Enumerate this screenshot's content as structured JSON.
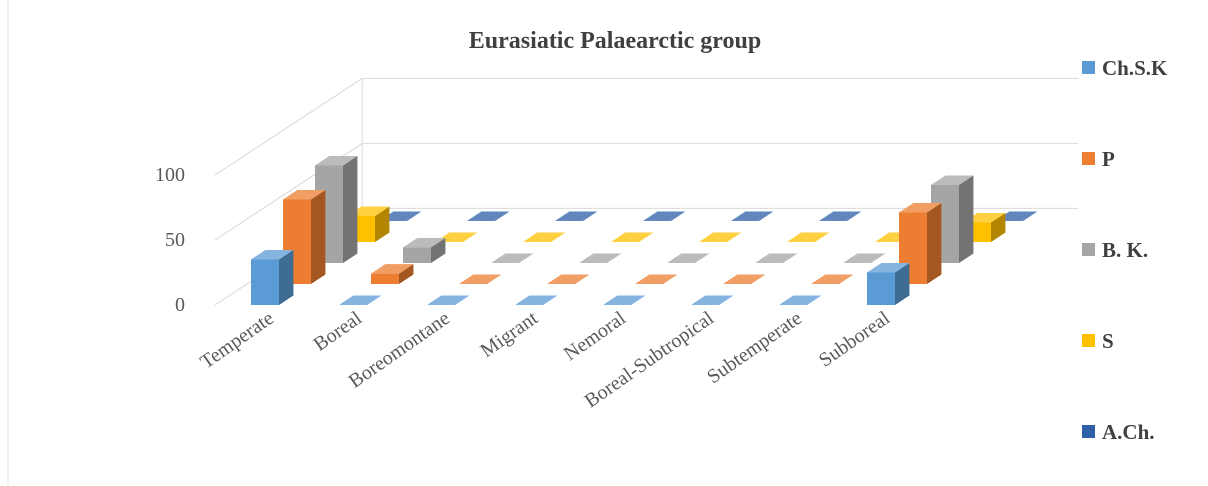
{
  "chart_data": {
    "type": "bar3d",
    "title": "Eurasiatic Palaearctic group",
    "categories": [
      "Temperate",
      "Boreal",
      "Boreomontane",
      "Migrant",
      "Nemoral",
      "Boreal-Subtropical",
      "Subtemperate",
      "Subboreal"
    ],
    "series": [
      {
        "name": "Ch.S.K",
        "color": "#5b9bd5",
        "values": [
          35,
          0,
          0,
          0,
          0,
          0,
          0,
          25
        ]
      },
      {
        "name": "P",
        "color": "#ed7d31",
        "values": [
          65,
          8,
          0,
          0,
          0,
          0,
          0,
          55
        ]
      },
      {
        "name": "B. K.",
        "color": "#a5a5a5",
        "values": [
          75,
          12,
          0,
          0,
          0,
          0,
          0,
          60
        ]
      },
      {
        "name": "S",
        "color": "#ffc000",
        "values": [
          20,
          0,
          0,
          0,
          0,
          0,
          0,
          15
        ]
      },
      {
        "name": "A.Ch.",
        "color": "#2e5fa8",
        "values": [
          0,
          0,
          0,
          0,
          0,
          0,
          0,
          0
        ]
      }
    ],
    "ylim": [
      0,
      100
    ],
    "yticks": [
      0,
      50,
      100
    ],
    "grid": true,
    "legend": "right"
  }
}
